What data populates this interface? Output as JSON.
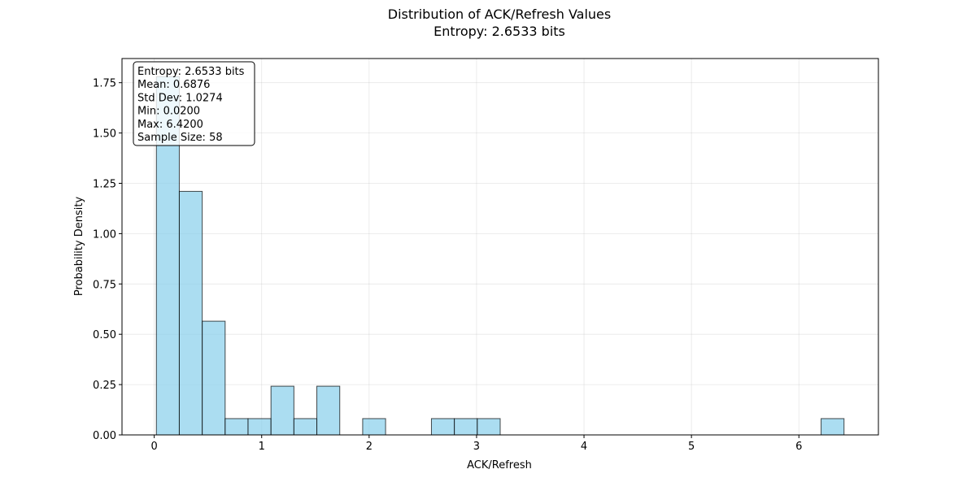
{
  "chart_data": {
    "type": "bar",
    "title": "Distribution of ACK/Refresh Values",
    "subtitle": "Entropy: 2.6533 bits",
    "xlabel": "ACK/Refresh",
    "ylabel": "Probability Density",
    "xlim": [
      -0.3,
      6.74
    ],
    "ylim": [
      0,
      1.87
    ],
    "grid": true,
    "x_ticks": [
      0,
      1,
      2,
      3,
      4,
      5,
      6
    ],
    "x_tick_labels": [
      "0",
      "1",
      "2",
      "3",
      "4",
      "5",
      "6"
    ],
    "y_ticks": [
      0,
      0.25,
      0.5,
      0.75,
      1.0,
      1.25,
      1.5,
      1.75
    ],
    "y_tick_labels": [
      "0.00",
      "0.25",
      "0.50",
      "0.75",
      "1.00",
      "1.25",
      "1.50",
      "1.75"
    ],
    "bin_width": 0.2133,
    "bins": [
      {
        "x0": 0.02,
        "x1": 0.2333,
        "value": 1.78
      },
      {
        "x0": 0.2333,
        "x1": 0.4467,
        "value": 1.21
      },
      {
        "x0": 0.4467,
        "x1": 0.66,
        "value": 0.565
      },
      {
        "x0": 0.66,
        "x1": 0.8733,
        "value": 0.081
      },
      {
        "x0": 0.8733,
        "x1": 1.0867,
        "value": 0.081
      },
      {
        "x0": 1.0867,
        "x1": 1.3,
        "value": 0.242
      },
      {
        "x0": 1.3,
        "x1": 1.5133,
        "value": 0.081
      },
      {
        "x0": 1.5133,
        "x1": 1.7267,
        "value": 0.242
      },
      {
        "x0": 1.7267,
        "x1": 1.94,
        "value": 0
      },
      {
        "x0": 1.94,
        "x1": 2.1533,
        "value": 0.081
      },
      {
        "x0": 2.1533,
        "x1": 2.3667,
        "value": 0
      },
      {
        "x0": 2.3667,
        "x1": 2.58,
        "value": 0
      },
      {
        "x0": 2.58,
        "x1": 2.7933,
        "value": 0.081
      },
      {
        "x0": 2.7933,
        "x1": 3.0067,
        "value": 0.081
      },
      {
        "x0": 3.0067,
        "x1": 3.22,
        "value": 0.081
      },
      {
        "x0": 3.22,
        "x1": 3.4333,
        "value": 0
      },
      {
        "x0": 3.4333,
        "x1": 3.6467,
        "value": 0
      },
      {
        "x0": 3.6467,
        "x1": 3.86,
        "value": 0
      },
      {
        "x0": 3.86,
        "x1": 4.0733,
        "value": 0
      },
      {
        "x0": 4.0733,
        "x1": 4.2867,
        "value": 0
      },
      {
        "x0": 4.2867,
        "x1": 4.5,
        "value": 0
      },
      {
        "x0": 4.5,
        "x1": 4.7133,
        "value": 0
      },
      {
        "x0": 4.7133,
        "x1": 4.9267,
        "value": 0
      },
      {
        "x0": 4.9267,
        "x1": 5.14,
        "value": 0
      },
      {
        "x0": 5.14,
        "x1": 5.3533,
        "value": 0
      },
      {
        "x0": 5.3533,
        "x1": 5.5667,
        "value": 0
      },
      {
        "x0": 5.5667,
        "x1": 5.78,
        "value": 0
      },
      {
        "x0": 5.78,
        "x1": 5.9933,
        "value": 0
      },
      {
        "x0": 5.9933,
        "x1": 6.2067,
        "value": 0
      },
      {
        "x0": 6.2067,
        "x1": 6.42,
        "value": 0.081
      }
    ],
    "stats_lines": [
      "Entropy: 2.6533 bits",
      "Mean: 0.6876",
      "Std Dev: 1.0274",
      "Min: 0.0200",
      "Max: 6.4200",
      "Sample Size: 58"
    ],
    "colors": {
      "bar_fill": "#87ceeb",
      "bar_stroke": "#000000",
      "grid": "#b0b0b0",
      "axes": "#000000"
    }
  }
}
